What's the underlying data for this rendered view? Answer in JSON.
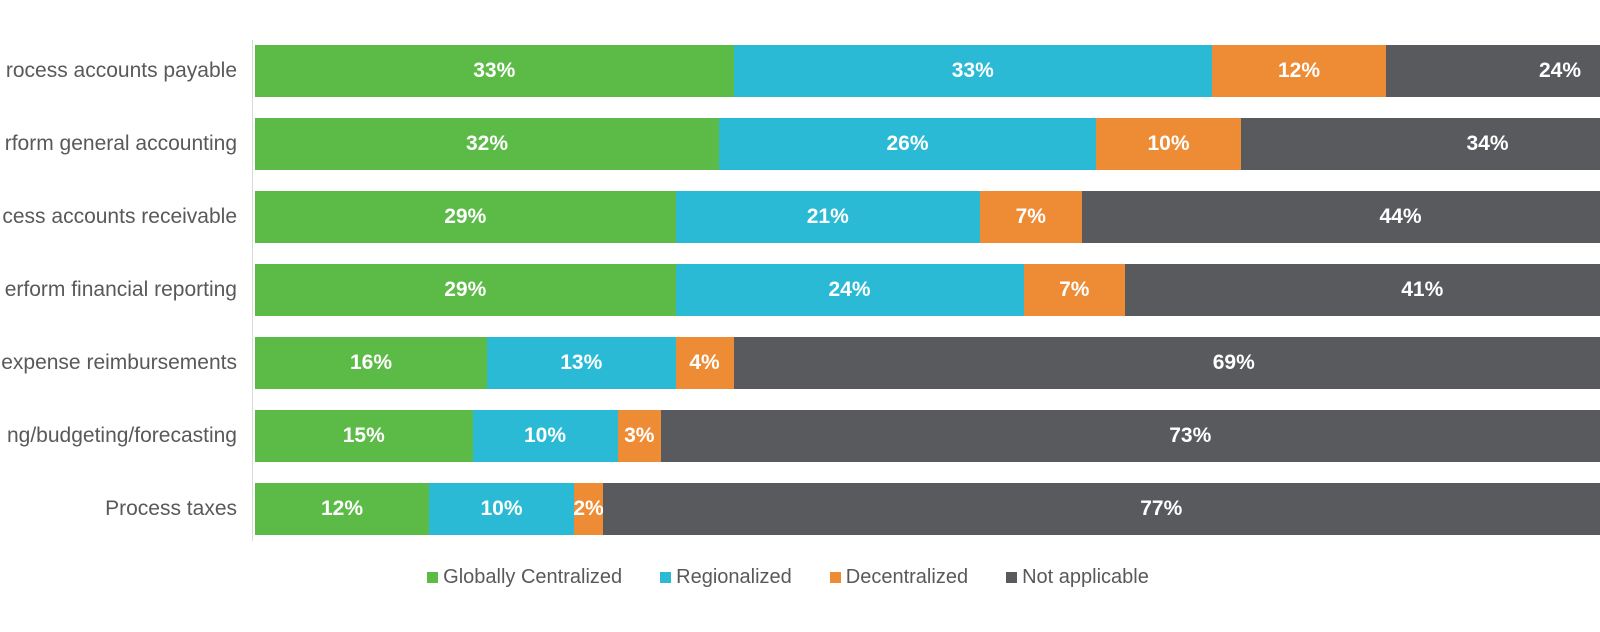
{
  "chart_data": {
    "type": "bar",
    "orientation": "horizontal",
    "stacked": true,
    "title": "",
    "xlabel": "",
    "ylabel": "",
    "xlim": [
      0,
      100
    ],
    "grid": false,
    "legend_position": "bottom",
    "value_suffix": "%",
    "categories": [
      "rocess accounts payable",
      "rform general accounting",
      "cess accounts receivable",
      "erform financial reporting",
      "expense reimbursements",
      "ng/budgeting/forecasting",
      "Process taxes"
    ],
    "series": [
      {
        "name": "Globally Centralized",
        "color": "#5cba47",
        "values": [
          33,
          32,
          29,
          29,
          16,
          15,
          12
        ]
      },
      {
        "name": "Regionalized",
        "color": "#2abad5",
        "values": [
          33,
          26,
          21,
          24,
          13,
          10,
          10
        ]
      },
      {
        "name": "Decentralized",
        "color": "#ee8b35",
        "values": [
          12,
          10,
          7,
          7,
          4,
          3,
          2
        ]
      },
      {
        "name": "Not applicable",
        "color": "#595a5e",
        "values": [
          24,
          34,
          44,
          41,
          69,
          73,
          77
        ]
      }
    ]
  },
  "colors": {
    "axis_line": "#d9d9d9",
    "category_text": "#58595b",
    "legend_text": "#595959",
    "value_text": "#ffffff",
    "background": "#ffffff"
  }
}
